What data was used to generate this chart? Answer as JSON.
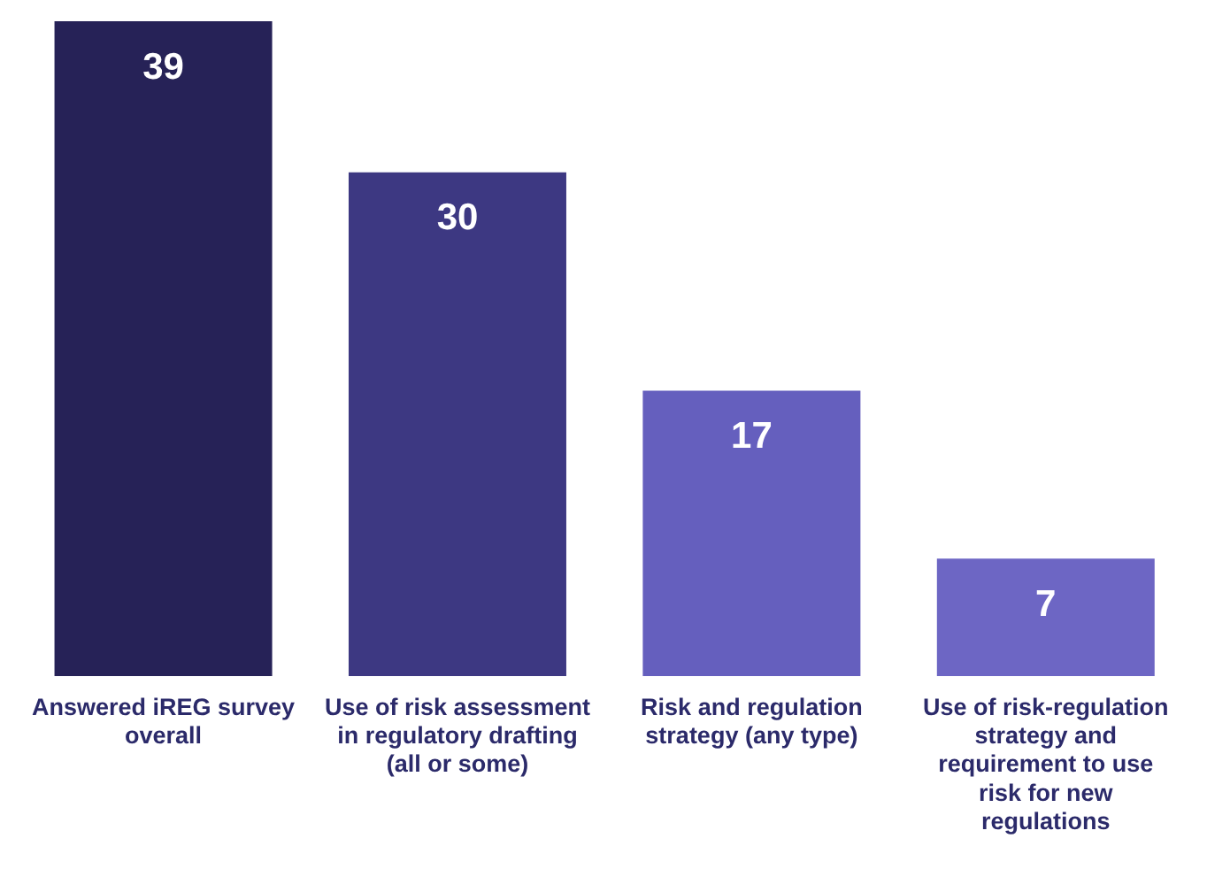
{
  "chart_data": {
    "type": "bar",
    "categories": [
      "Answered iREG survey overall",
      "Use of risk assessment in regulatory drafting (all or some)",
      "Risk and regulation strategy (any type)",
      "Use of risk-regulation strategy and requirement to use risk for new regulations"
    ],
    "values": [
      39,
      30,
      17,
      7
    ],
    "colors": [
      "#262257",
      "#3d3882",
      "#655fbe",
      "#6d66c4"
    ],
    "data_labels": true,
    "legend": false,
    "grid": false
  }
}
